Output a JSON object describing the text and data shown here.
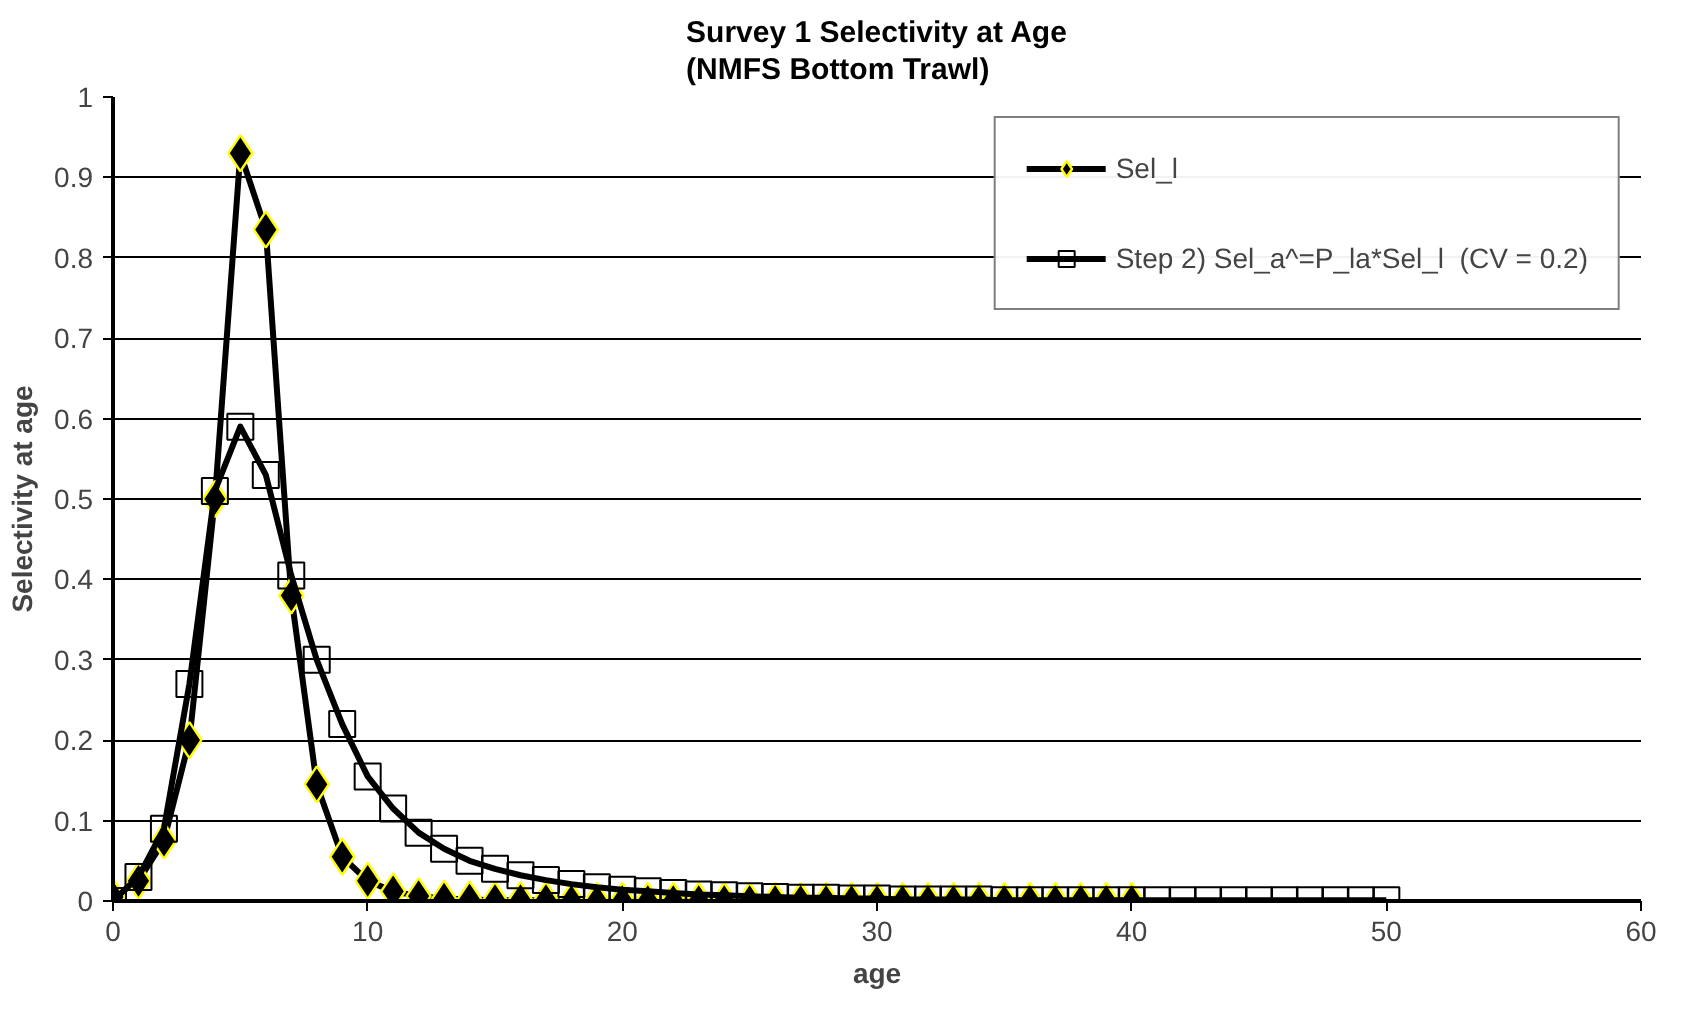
{
  "chart_data": {
    "type": "line",
    "title": "Survey 1 Selectivity at Age\n(NMFS Bottom Trawl)",
    "xlabel": "age",
    "ylabel": "Selectivity at age",
    "xlim": [
      0,
      60
    ],
    "xticks": [
      0,
      10,
      20,
      30,
      40,
      50,
      60
    ],
    "ylim": [
      0,
      1
    ],
    "yticks": [
      0,
      0.1,
      0.2,
      0.3,
      0.4,
      0.5,
      0.6,
      0.7,
      0.8,
      0.9,
      1
    ],
    "grid": "y",
    "legend": "top right",
    "line_style": "solid",
    "series": [
      {
        "name": "Sel_l",
        "color": "#000000",
        "marker": "diamond",
        "x": [
          0,
          1,
          2,
          3,
          4,
          5,
          6,
          7,
          8,
          9,
          10,
          11,
          12,
          13,
          14,
          15,
          16,
          17,
          18,
          19,
          20,
          21,
          22,
          23,
          24,
          25,
          26,
          27,
          28,
          29,
          30,
          31,
          32,
          33,
          34,
          35,
          36,
          37,
          38,
          39,
          40
        ],
        "values": [
          0.005,
          0.025,
          0.075,
          0.2,
          0.5,
          0.93,
          0.835,
          0.38,
          0.145,
          0.055,
          0.025,
          0.012,
          0.006,
          0.003,
          0.002,
          0.001,
          0.001,
          0.001,
          0,
          0,
          0,
          0,
          0,
          0,
          0,
          0,
          0,
          0,
          0,
          0,
          0,
          0,
          0,
          0,
          0,
          0,
          0,
          0,
          0,
          0,
          0
        ]
      },
      {
        "name": "Step 2) Sel_a^=P_la*Sel_l  (CV = 0.2)",
        "color": "#000000",
        "marker": "square",
        "x": [
          0,
          1,
          2,
          3,
          4,
          5,
          6,
          7,
          8,
          9,
          10,
          11,
          12,
          13,
          14,
          15,
          16,
          17,
          18,
          19,
          20,
          21,
          22,
          23,
          24,
          25,
          26,
          27,
          28,
          29,
          30,
          31,
          32,
          33,
          34,
          35,
          36,
          37,
          38,
          39,
          40,
          41,
          42,
          43,
          44,
          45,
          46,
          47,
          48,
          49,
          50
        ],
        "values": [
          0.0,
          0.03,
          0.09,
          0.27,
          0.51,
          0.59,
          0.53,
          0.405,
          0.3,
          0.22,
          0.155,
          0.115,
          0.085,
          0.065,
          0.05,
          0.04,
          0.032,
          0.026,
          0.021,
          0.017,
          0.014,
          0.012,
          0.01,
          0.008,
          0.007,
          0.006,
          0.005,
          0.004,
          0.004,
          0.003,
          0.003,
          0.002,
          0.002,
          0.002,
          0.002,
          0.001,
          0.001,
          0.001,
          0.001,
          0.001,
          0.001,
          0.001,
          0.001,
          0.001,
          0.001,
          0.001,
          0.001,
          0.001,
          0.001,
          0.001,
          0.001
        ]
      }
    ]
  }
}
